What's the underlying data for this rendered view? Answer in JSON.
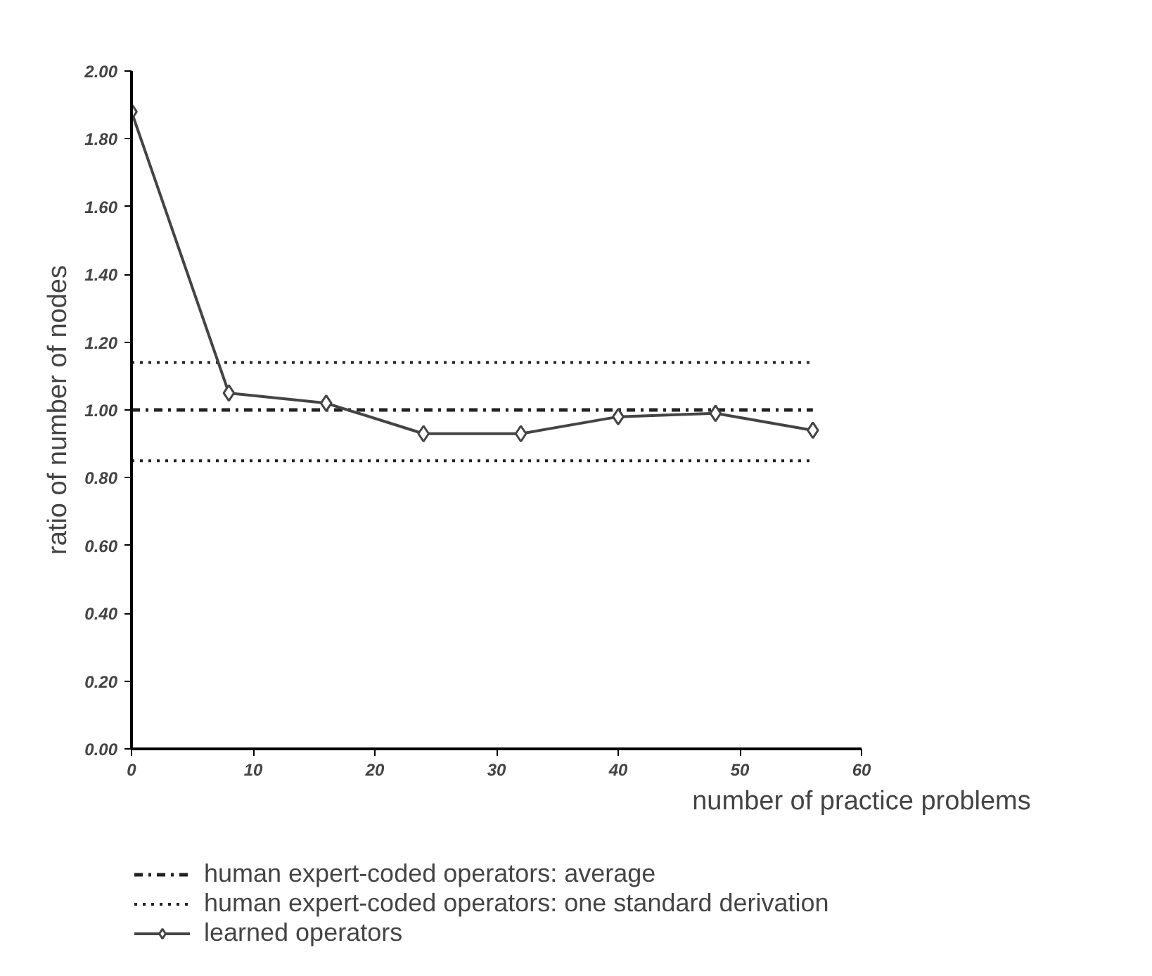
{
  "chart_data": {
    "type": "line",
    "xlabel": "number of practice problems",
    "ylabel": "ratio of number of nodes",
    "xlim": [
      0,
      60
    ],
    "xticks": [
      0,
      10,
      20,
      30,
      40,
      50,
      60
    ],
    "ylim": [
      0,
      2
    ],
    "yticks": [
      {
        "value": 0,
        "label": "0.00"
      },
      {
        "value": 0.2,
        "label": "0.20"
      },
      {
        "value": 0.4,
        "label": "0.40"
      },
      {
        "value": 0.6,
        "label": "0.60"
      },
      {
        "value": 0.8,
        "label": "0.80"
      },
      {
        "value": 1,
        "label": "1.00"
      },
      {
        "value": 1.2,
        "label": "1.20"
      },
      {
        "value": 1.4,
        "label": "1.40"
      },
      {
        "value": 1.6,
        "label": "1.60"
      },
      {
        "value": 1.8,
        "label": "1.80"
      },
      {
        "value": 2,
        "label": "2.00"
      }
    ],
    "grid": false,
    "legend": "bottom",
    "series": [
      {
        "name": "human expert-coded operators: average",
        "color": "#222222",
        "line_style": "dashdot",
        "marker": "none",
        "x": [
          0,
          56
        ],
        "values": [
          1.0,
          1.0
        ]
      },
      {
        "name": "human expert-coded operators: one standard derivation",
        "color": "#222222",
        "line_style": "dotted",
        "marker": "none",
        "x": [
          0,
          56
        ],
        "values": [
          1.14,
          1.14
        ]
      },
      {
        "color": "#222222",
        "line_style": "dotted",
        "marker": "none",
        "x": [
          0,
          56
        ],
        "values": [
          0.85,
          0.85
        ]
      },
      {
        "name": "learned operators",
        "color": "#444444",
        "line_style": "solid",
        "marker": "diamond",
        "x": [
          0,
          8,
          16,
          24,
          32,
          40,
          48,
          56
        ],
        "values": [
          1.88,
          1.05,
          1.02,
          0.93,
          0.93,
          0.98,
          0.99,
          0.94
        ]
      }
    ]
  }
}
